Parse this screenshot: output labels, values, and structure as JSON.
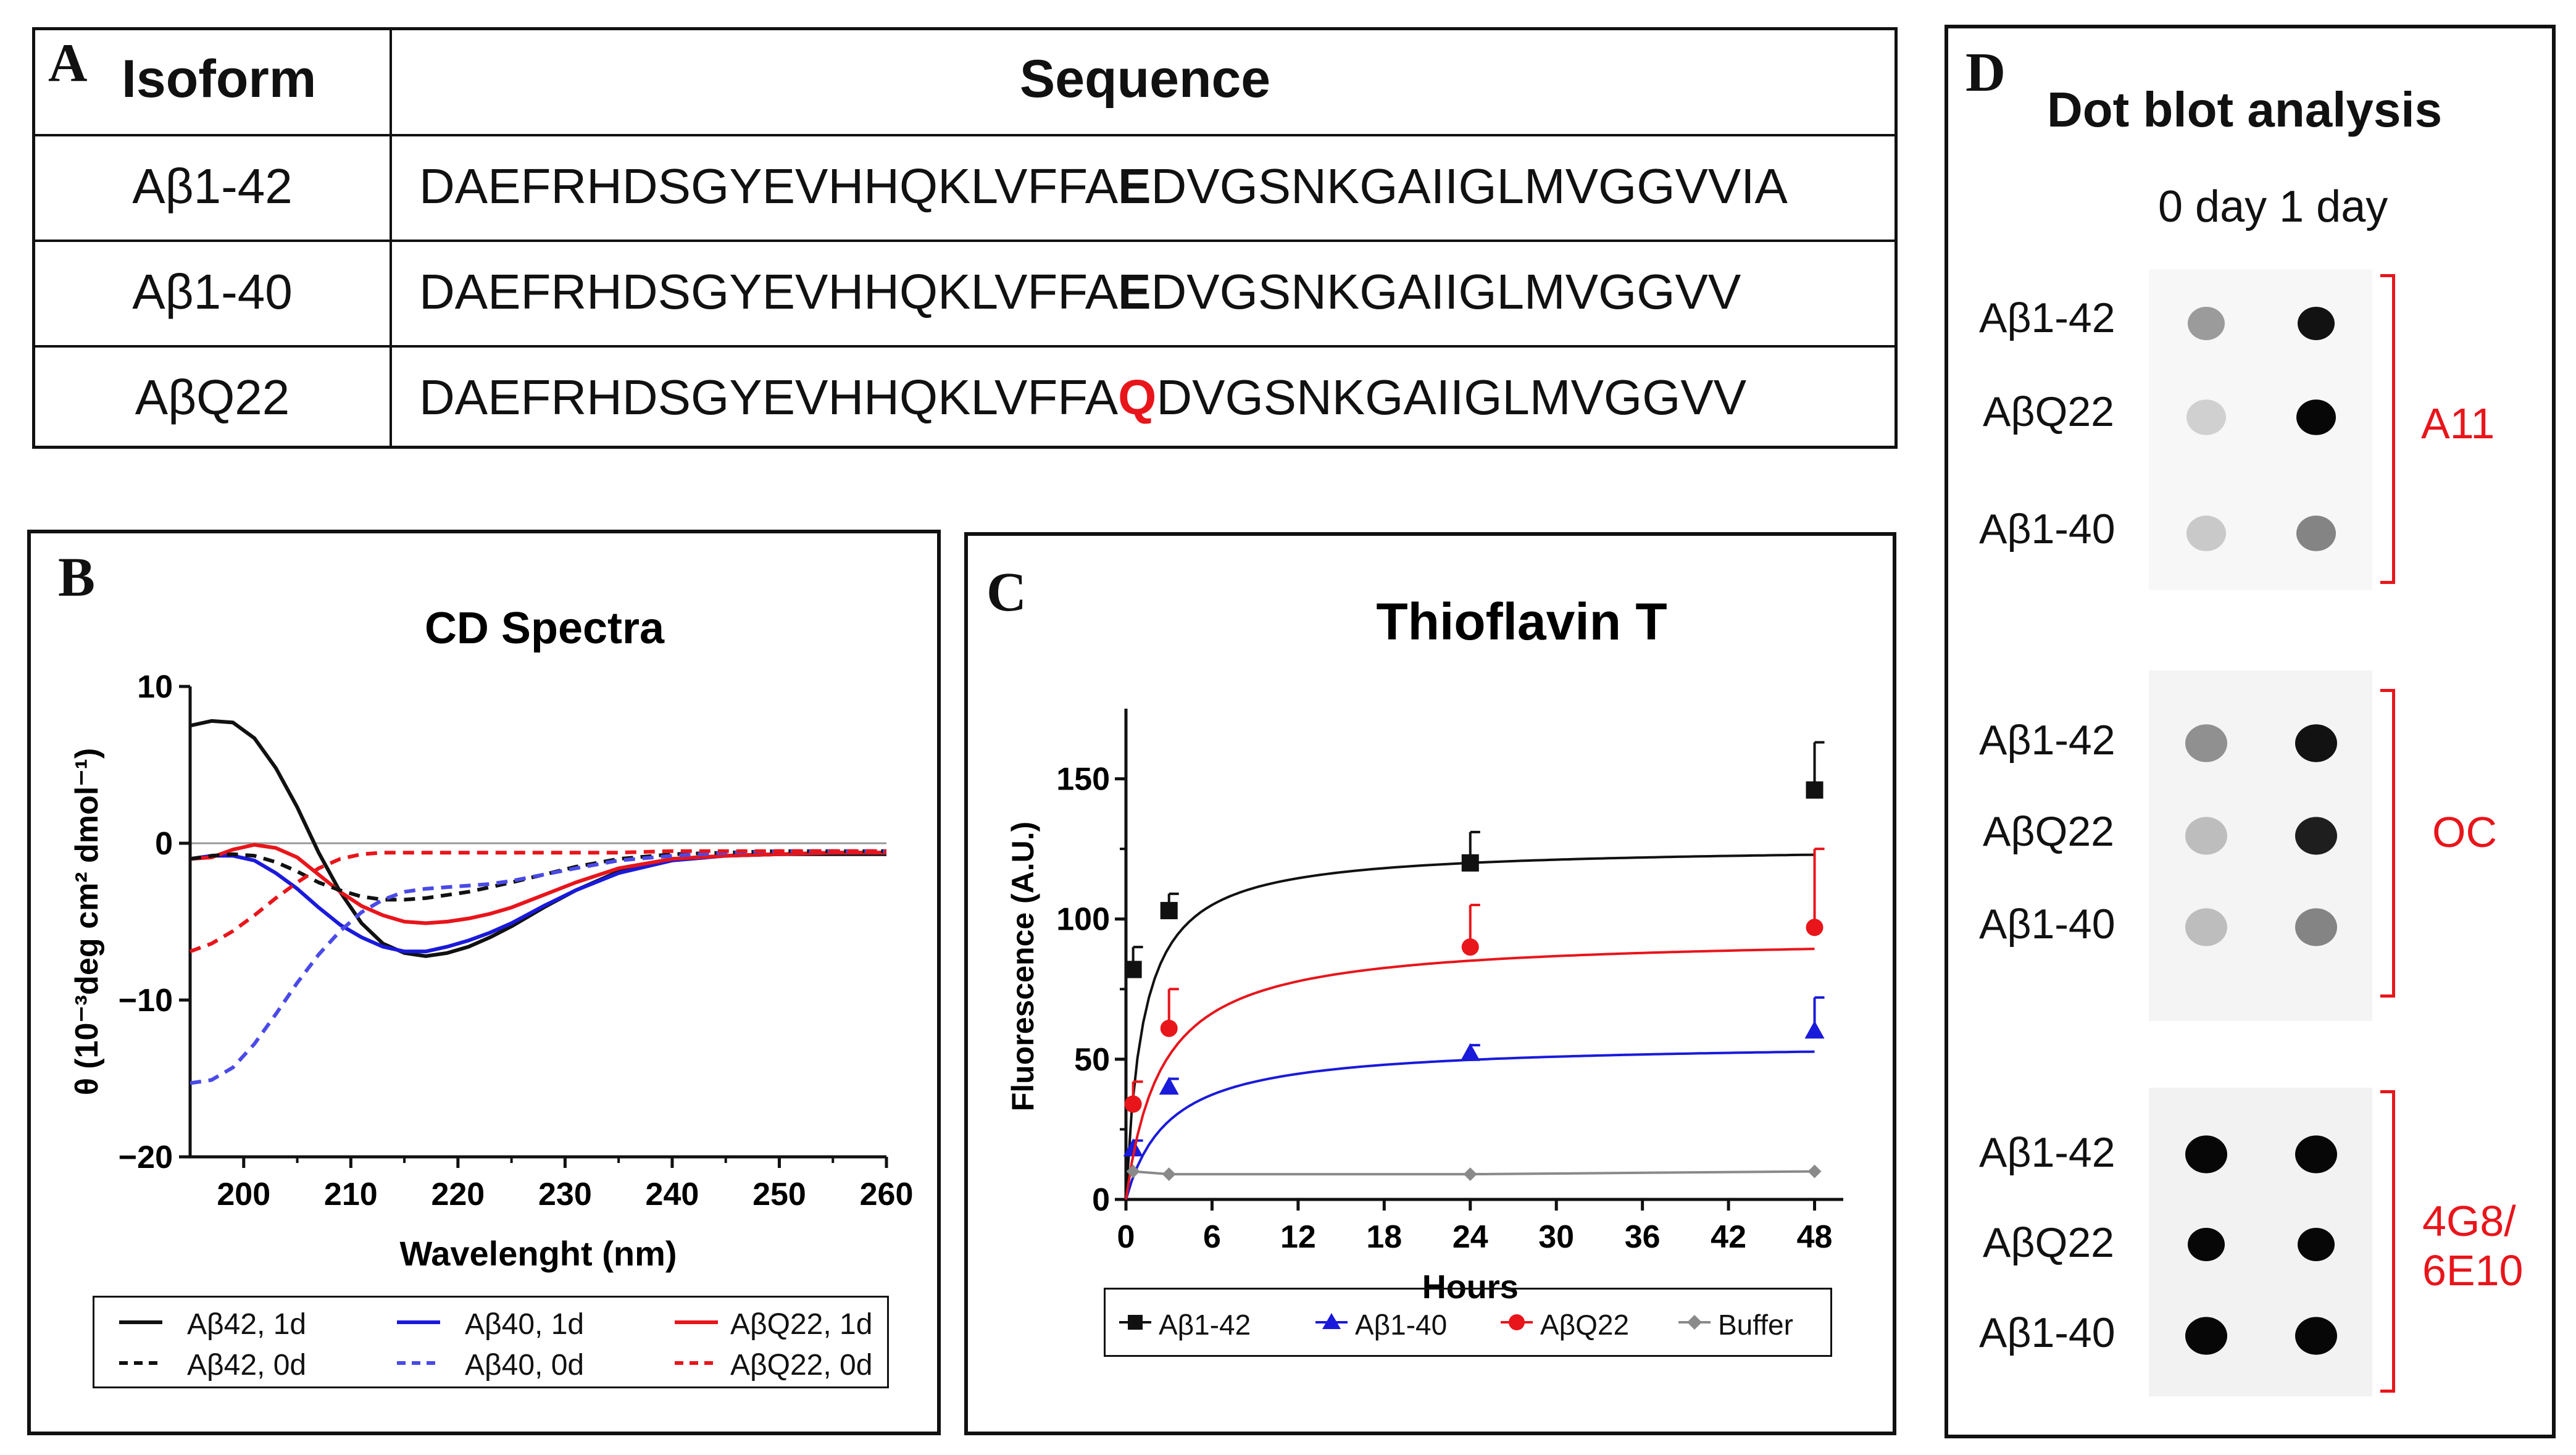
{
  "panel_a": {
    "letter": "A",
    "headers": {
      "isoform": "Isoform",
      "sequence": "Sequence"
    },
    "rows": [
      {
        "isoform": "Aβ1-42",
        "seq_pre": "DAEFRHDSGYEVHHQKLVFFA",
        "residue": "E",
        "seq_post": "DVGSNKGAIIGLMVGGVVIA",
        "residue_color": "#111111"
      },
      {
        "isoform": "Aβ1-40",
        "seq_pre": "DAEFRHDSGYEVHHQKLVFFA",
        "residue": "E",
        "seq_post": "DVGSNKGAIIGLMVGGVV",
        "residue_color": "#111111"
      },
      {
        "isoform": "AβQ22",
        "seq_pre": "DAEFRHDSGYEVHHQKLVFFA",
        "residue": "Q",
        "seq_post": "DVGSNKGAIIGLMVGGVV",
        "residue_color": "#e8151b"
      }
    ]
  },
  "panel_b": {
    "letter": "B",
    "legend": [
      "Aβ42, 1d",
      "Aβ40, 1d",
      "AβQ22, 1d",
      "Aβ42, 0d",
      "Aβ40, 0d",
      "AβQ22, 0d"
    ]
  },
  "panel_c": {
    "letter": "C",
    "legend": [
      "Aβ1-42",
      "Aβ1-40",
      "AβQ22",
      "Buffer"
    ]
  },
  "panel_d": {
    "letter": "D",
    "title": "Dot blot analysis",
    "columns_label": "0 day 1 day",
    "groups": [
      {
        "antibody": "A11",
        "labels": [
          "Aβ1-42",
          "AβQ22",
          "Aβ1-40"
        ],
        "spots_0d": [
          0.35,
          0.12,
          0.15
        ],
        "spots_1d": [
          0.95,
          1.0,
          0.45
        ]
      },
      {
        "antibody": "OC",
        "labels": [
          "Aβ1-42",
          "AβQ22",
          "Aβ1-40"
        ],
        "spots_0d": [
          0.4,
          0.2,
          0.2
        ],
        "spots_1d": [
          0.95,
          0.9,
          0.45
        ]
      },
      {
        "antibody": "4G8/\n6E10",
        "antibody_lines": [
          "4G8/",
          "6E10"
        ],
        "labels": [
          "Aβ1-42",
          "AβQ22",
          "Aβ1-40"
        ],
        "spots_0d": [
          1.0,
          1.0,
          1.0
        ],
        "spots_1d": [
          1.0,
          1.0,
          1.0
        ]
      }
    ]
  },
  "chart_data": [
    {
      "type": "line",
      "title": "CD Spectra",
      "xlabel": "Wavelenght (nm)",
      "ylabel": "θ (10⁻³deg cm² dmol⁻¹)",
      "xlim": [
        195,
        260
      ],
      "ylim": [
        -20,
        10
      ],
      "xticks": [
        200,
        210,
        220,
        230,
        240,
        250,
        260
      ],
      "yticks": [
        10,
        0,
        -10,
        -20
      ],
      "x": [
        195,
        197,
        199,
        201,
        203,
        205,
        207,
        209,
        211,
        213,
        215,
        217,
        219,
        221,
        223,
        225,
        228,
        231,
        235,
        240,
        245,
        250,
        255,
        260
      ],
      "series": [
        {
          "name": "Aβ42, 1d",
          "color": "#111111",
          "dash": false,
          "values": [
            7.5,
            7.8,
            7.7,
            6.7,
            4.8,
            2.3,
            -0.6,
            -3.1,
            -5.1,
            -6.4,
            -7.0,
            -7.2,
            -7.0,
            -6.6,
            -6.0,
            -5.3,
            -4.1,
            -3.0,
            -1.8,
            -1.0,
            -0.8,
            -0.7,
            -0.7,
            -0.7
          ]
        },
        {
          "name": "Aβ40, 1d",
          "color": "#1a1adb",
          "dash": false,
          "values": [
            -1.0,
            -0.8,
            -0.8,
            -1.1,
            -1.9,
            -2.9,
            -4.1,
            -5.2,
            -6.0,
            -6.6,
            -6.9,
            -6.9,
            -6.6,
            -6.2,
            -5.7,
            -5.1,
            -4.0,
            -3.0,
            -1.9,
            -1.1,
            -0.8,
            -0.7,
            -0.6,
            -0.6
          ]
        },
        {
          "name": "AβQ22, 1d",
          "color": "#e8151b",
          "dash": false,
          "values": [
            -1.0,
            -0.9,
            -0.4,
            -0.1,
            -0.3,
            -0.9,
            -2.0,
            -3.1,
            -4.0,
            -4.6,
            -5.0,
            -5.1,
            -5.0,
            -4.8,
            -4.5,
            -4.1,
            -3.3,
            -2.5,
            -1.6,
            -1.0,
            -0.8,
            -0.7,
            -0.6,
            -0.6
          ]
        },
        {
          "name": "Aβ42, 0d",
          "color": "#111111",
          "dash": true,
          "values": [
            -1.0,
            -0.8,
            -0.7,
            -0.8,
            -1.2,
            -1.8,
            -2.5,
            -3.0,
            -3.4,
            -3.6,
            -3.6,
            -3.5,
            -3.3,
            -3.1,
            -2.8,
            -2.5,
            -2.0,
            -1.5,
            -1.0,
            -0.7,
            -0.6,
            -0.5,
            -0.5,
            -0.5
          ]
        },
        {
          "name": "Aβ40, 0d",
          "color": "#4a4ae8",
          "dash": true,
          "values": [
            -15.3,
            -15.1,
            -14.3,
            -12.8,
            -10.9,
            -8.9,
            -7.1,
            -5.6,
            -4.4,
            -3.6,
            -3.1,
            -2.9,
            -2.8,
            -2.7,
            -2.6,
            -2.4,
            -2.0,
            -1.6,
            -1.1,
            -0.8,
            -0.6,
            -0.5,
            -0.5,
            -0.5
          ]
        },
        {
          "name": "AβQ22, 0d",
          "color": "#e8151b",
          "dash": true,
          "values": [
            -6.9,
            -6.4,
            -5.6,
            -4.6,
            -3.5,
            -2.5,
            -1.6,
            -1.0,
            -0.7,
            -0.6,
            -0.6,
            -0.6,
            -0.6,
            -0.6,
            -0.6,
            -0.6,
            -0.6,
            -0.6,
            -0.6,
            -0.5,
            -0.5,
            -0.5,
            -0.5,
            -0.5
          ]
        }
      ]
    },
    {
      "type": "scatter",
      "title": "Thioflavin T",
      "xlabel": "Hours",
      "ylabel": "Fluorescence (A.U.)",
      "xlim": [
        0,
        50
      ],
      "ylim": [
        0,
        175
      ],
      "xticks": [
        0,
        6,
        12,
        18,
        24,
        30,
        36,
        42,
        48
      ],
      "yticks": [
        0,
        50,
        100,
        150
      ],
      "series": [
        {
          "name": "Aβ1-42",
          "color": "#111111",
          "marker": "square",
          "x": [
            0.5,
            3,
            24,
            48
          ],
          "values": [
            82,
            103,
            120,
            146
          ],
          "err": [
            8,
            6,
            11,
            17
          ],
          "fit_max": 126,
          "fit_k": 1.2
        },
        {
          "name": "Aβ1-40",
          "color": "#1a1adb",
          "marker": "triangle",
          "x": [
            0.5,
            3,
            24,
            48
          ],
          "values": [
            18,
            40,
            52,
            60
          ],
          "err": [
            3,
            3,
            3,
            12
          ],
          "fit_max": 56,
          "fit_k": 3.0
        },
        {
          "name": "AβQ22",
          "color": "#e8151b",
          "marker": "circle",
          "x": [
            0.5,
            3,
            24,
            48
          ],
          "values": [
            34,
            61,
            90,
            97
          ],
          "err": [
            8,
            14,
            15,
            28
          ],
          "fit_max": 94,
          "fit_k": 2.5
        },
        {
          "name": "Buffer",
          "color": "#8a8a8a",
          "marker": "diamond",
          "x": [
            0.5,
            3,
            24,
            48
          ],
          "values": [
            10,
            9,
            9,
            10
          ],
          "err": [
            0,
            0,
            0,
            0
          ],
          "fit_max": null,
          "fit_k": null
        }
      ]
    }
  ]
}
